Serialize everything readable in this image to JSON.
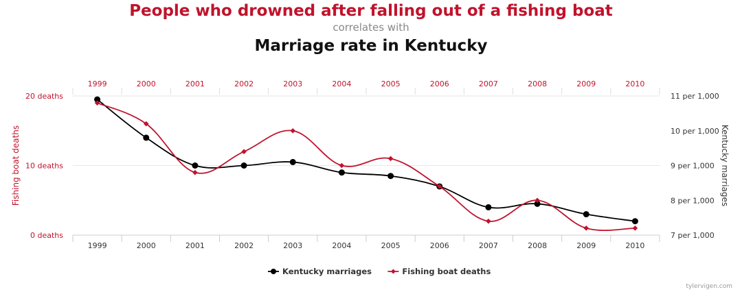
{
  "header": {
    "title": "People who drowned after falling out of a fishing boat",
    "subtitle": "correlates with",
    "title2": "Marriage rate in Kentucky"
  },
  "chart_data": {
    "type": "line",
    "categories": [
      "1999",
      "2000",
      "2001",
      "2002",
      "2003",
      "2004",
      "2005",
      "2006",
      "2007",
      "2008",
      "2009",
      "2010"
    ],
    "series": [
      {
        "name": "Kentucky marriages",
        "axis": "right",
        "color": "#000000",
        "values": [
          10.9,
          9.8,
          9.0,
          9.0,
          9.1,
          8.8,
          8.7,
          8.4,
          7.8,
          7.9,
          7.6,
          7.4
        ]
      },
      {
        "name": "Fishing boat deaths",
        "axis": "left",
        "color": "#c0132c",
        "values": [
          19,
          16,
          9,
          12,
          15,
          10,
          11,
          7,
          2,
          5,
          1,
          1
        ]
      }
    ],
    "left_axis": {
      "label": "Fishing boat deaths",
      "range": [
        0,
        20
      ],
      "ticks": [
        "0 deaths",
        "10 deaths",
        "20 deaths"
      ]
    },
    "right_axis": {
      "label": "Kentucky marriages",
      "range": [
        7,
        11
      ],
      "ticks": [
        "7 per 1,000",
        "8 per 1,000",
        "9 per 1,000",
        "10 per 1,000",
        "11 per 1,000"
      ]
    },
    "grid": "horizontal",
    "legend_position": "bottom-center"
  },
  "watermark": "tylervigen.com"
}
